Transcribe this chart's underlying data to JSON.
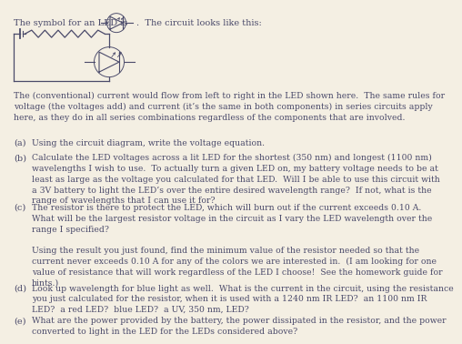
{
  "bg_color": "#f4efe3",
  "text_color": "#4a4a6a",
  "intro_text": "The (conventional) current would flow from left to right in the LED shown here.  The same rules for\nvoltage (the voltages add) and current (it’s the same in both components) in series circuits apply\nhere, as they do in all series combinations regardless of the components that are involved.",
  "items": [
    {
      "label": "(a)",
      "text": "Using the circuit diagram, write the voltage equation."
    },
    {
      "label": "(b)",
      "text": "Calculate the LED voltages across a lit LED for the shortest (350 nm) and longest (1100 nm)\nwavelengths I wish to use.  To actually turn a given LED on, my battery voltage needs to be at\nleast as large as the voltage you calculated for that LED.  Will I be able to use this circuit with\na 3V battery to light the LED’s over the entire desired wavelength range?  If not, what is the\nrange of wavelengths that I can use it for?"
    },
    {
      "label": "(c)",
      "text": "The resistor is there to protect the LED, which will burn out if the current exceeds 0.10 A.\nWhat will be the largest resistor voltage in the circuit as I vary the LED wavelength over the\nrange I specified?\n\nUsing the result you just found, find the minimum value of the resistor needed so that the\ncurrent never exceeds 0.10 A for any of the colors we are interested in.  (I am looking for one\nvalue of resistance that will work regardless of the LED I choose!  See the homework guide for\nhints.)"
    },
    {
      "label": "(d)",
      "text": "Look up wavelength for blue light as well.  What is the current in the circuit, using the resistance\nyou just calculated for the resistor, when it is used with a 1240 nm IR LED?  an 1100 nm IR\nLED?  a red LED?  blue LED?  a UV, 350 nm, LED?"
    },
    {
      "label": "(e)",
      "text": "What are the power provided by the battery, the power dissipated in the resistor, and the power\nconverted to light in the LED for the LEDs considered above?"
    }
  ],
  "font_size": 7.0
}
